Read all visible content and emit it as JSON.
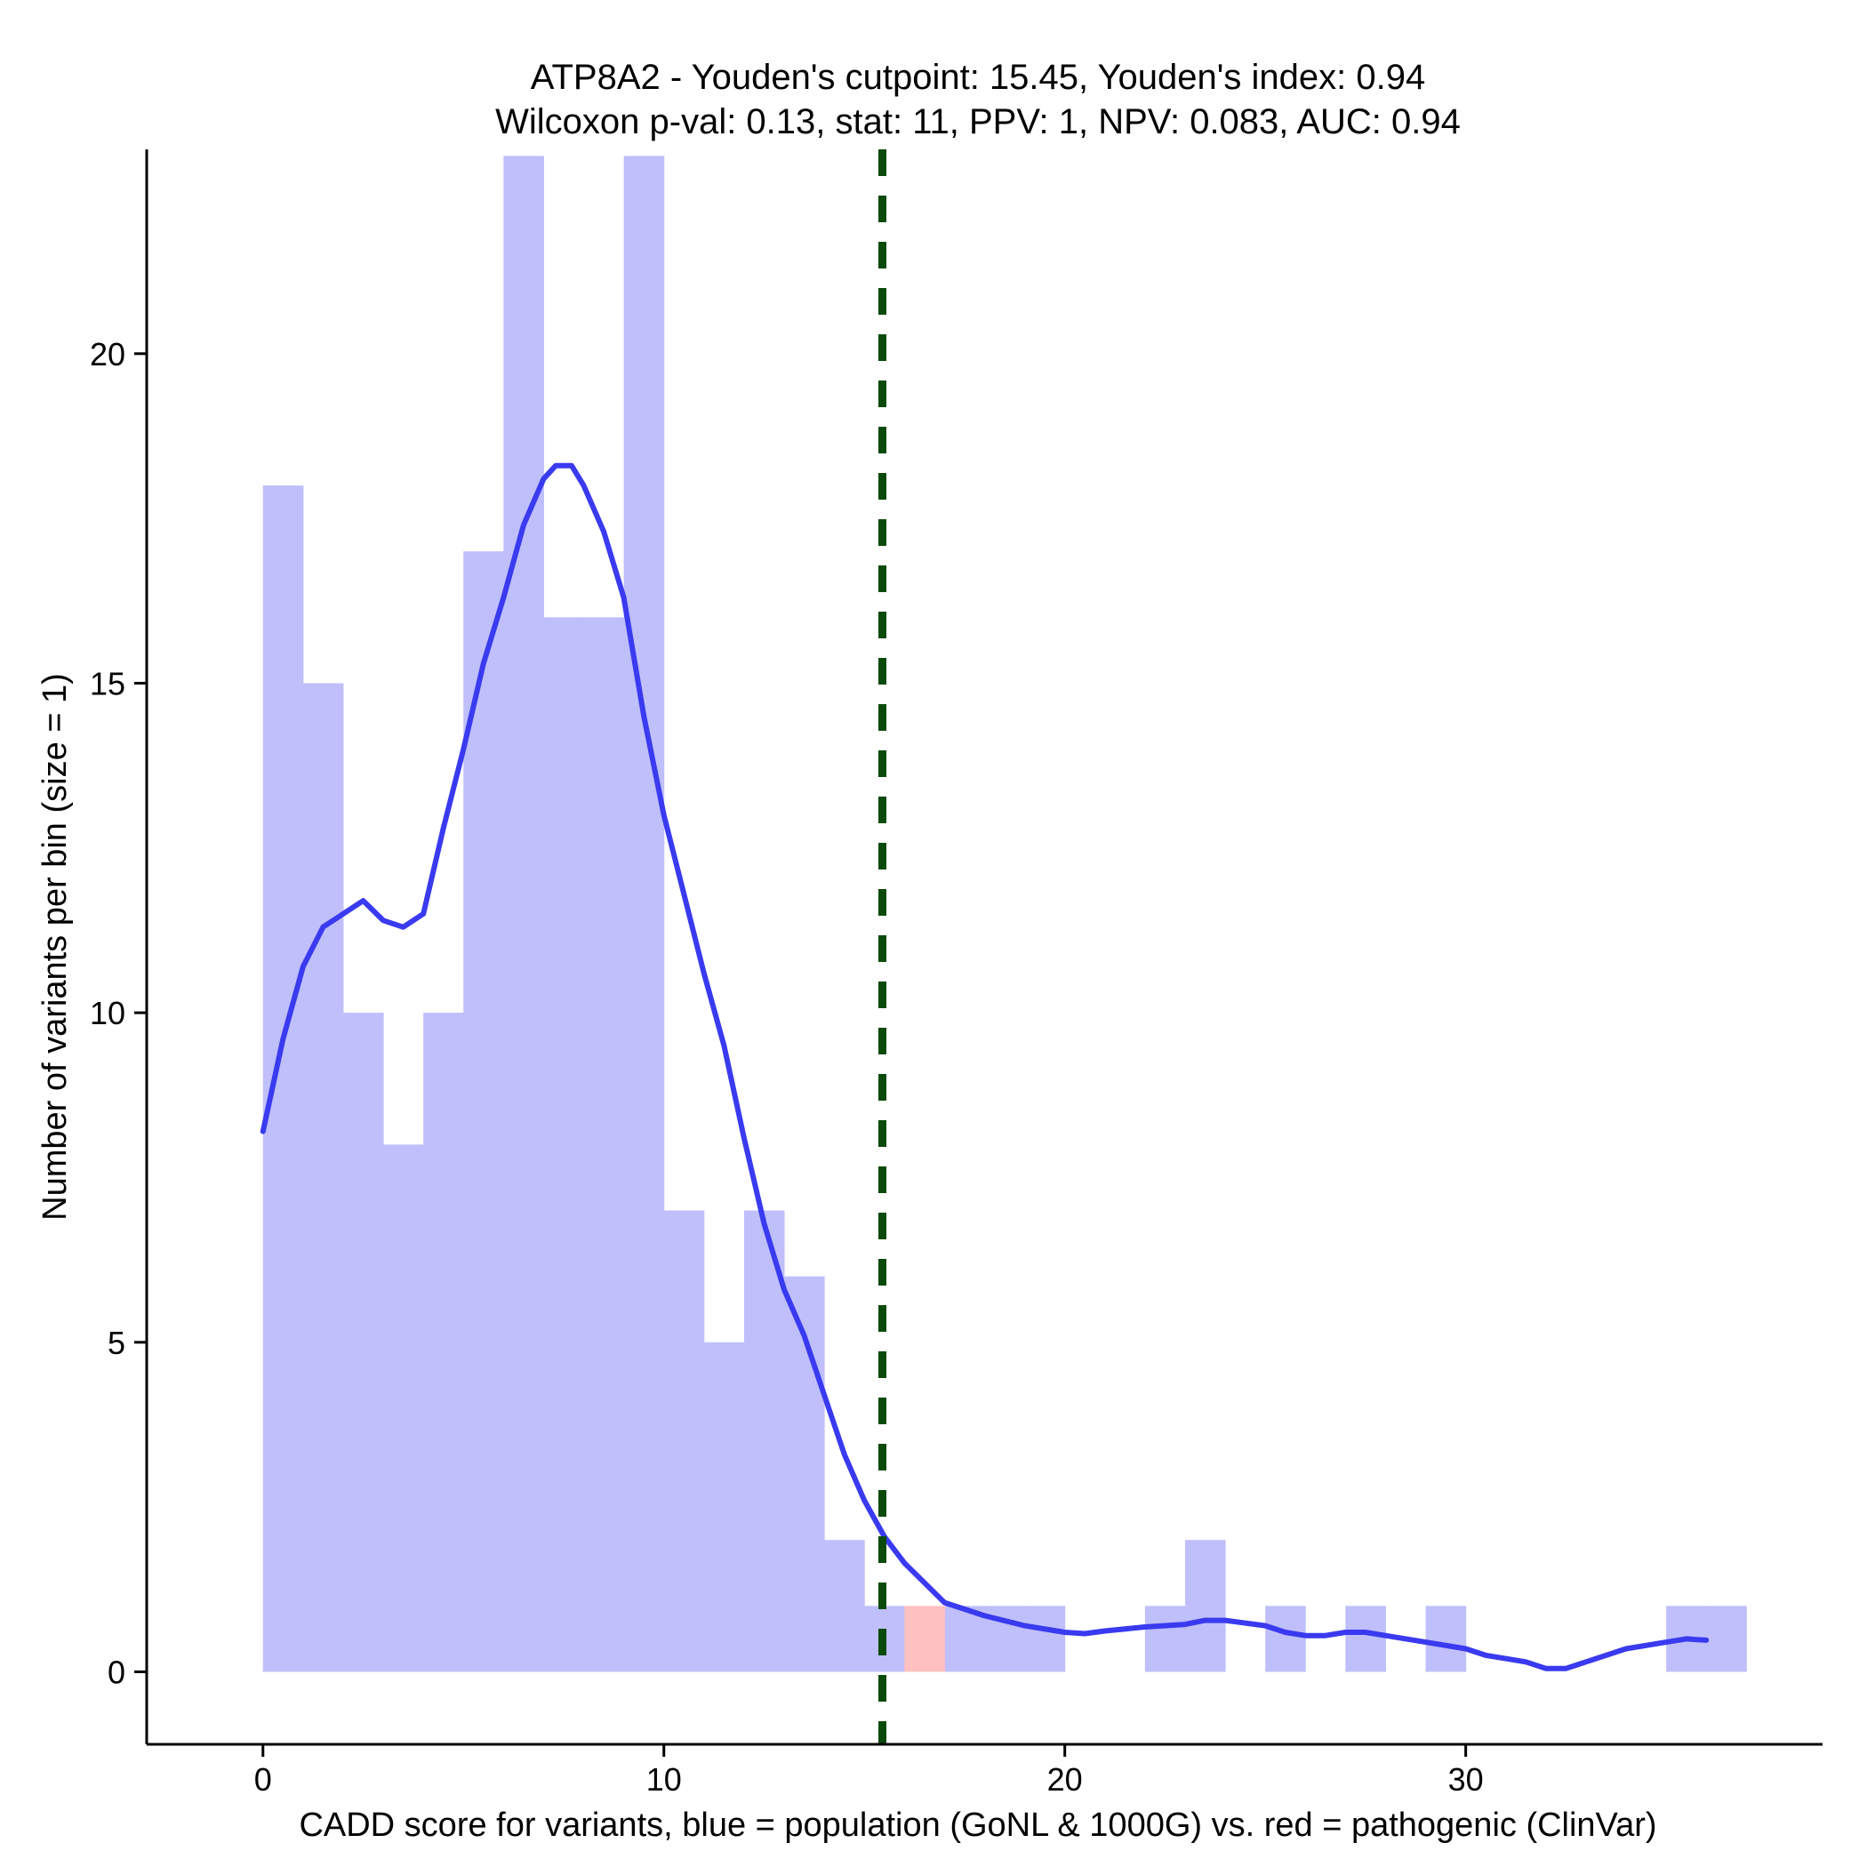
{
  "chart_data": {
    "type": "bar",
    "title": "ATP8A2 - Youden's cutpoint: 15.45, Youden's index: 0.94",
    "subtitle": "Wilcoxon p-val: 0.13, stat: 11, PPV: 1, NPV: 0.083, AUC: 0.94",
    "xlabel": "CADD score for variants, blue = population (GoNL & 1000G) vs. red = pathogenic (ClinVar)",
    "ylabel": "Number of variants per bin (size = 1)",
    "xlim": [
      -2.9,
      38.9
    ],
    "ylim": [
      -1.1,
      23.1
    ],
    "x_ticks": [
      0,
      10,
      20,
      30
    ],
    "y_ticks": [
      0,
      5,
      10,
      15,
      20
    ],
    "bin_size": 1,
    "cutpoint": 15.45,
    "colors": {
      "population": "#bfbffb",
      "pathogenic": "#ffc0c0",
      "density": "#3a3af0",
      "cutpoint": "#0a4a0a"
    },
    "series": [
      {
        "name": "population (GoNL & 1000G)",
        "bins": [
          [
            0,
            18
          ],
          [
            1,
            15
          ],
          [
            2,
            10
          ],
          [
            3,
            8
          ],
          [
            4,
            10
          ],
          [
            5,
            17
          ],
          [
            6,
            23
          ],
          [
            7,
            16
          ],
          [
            8,
            16
          ],
          [
            9,
            23
          ],
          [
            10,
            7
          ],
          [
            11,
            5
          ],
          [
            12,
            7
          ],
          [
            13,
            6
          ],
          [
            14,
            2
          ],
          [
            15,
            1
          ],
          [
            17,
            1
          ],
          [
            18,
            1
          ],
          [
            19,
            1
          ],
          [
            22,
            1
          ],
          [
            23,
            2
          ],
          [
            25,
            1
          ],
          [
            27,
            1
          ],
          [
            29,
            1
          ],
          [
            35,
            1
          ],
          [
            36,
            1
          ]
        ]
      },
      {
        "name": "pathogenic (ClinVar)",
        "bins": [
          [
            16,
            1
          ]
        ]
      },
      {
        "name": "population density (scaled)",
        "type": "line",
        "points": [
          [
            0,
            8.2
          ],
          [
            0.5,
            9.6
          ],
          [
            1,
            10.7
          ],
          [
            1.5,
            11.3
          ],
          [
            2,
            11.5
          ],
          [
            2.5,
            11.7
          ],
          [
            3,
            11.4
          ],
          [
            3.5,
            11.3
          ],
          [
            4,
            11.5
          ],
          [
            4.5,
            12.8
          ],
          [
            5,
            14.0
          ],
          [
            5.5,
            15.3
          ],
          [
            6,
            16.3
          ],
          [
            6.5,
            17.4
          ],
          [
            7,
            18.1
          ],
          [
            7.3,
            18.3
          ],
          [
            7.7,
            18.3
          ],
          [
            8,
            18.0
          ],
          [
            8.5,
            17.3
          ],
          [
            9,
            16.3
          ],
          [
            9.5,
            14.5
          ],
          [
            10,
            13.0
          ],
          [
            10.5,
            11.8
          ],
          [
            11,
            10.6
          ],
          [
            11.5,
            9.5
          ],
          [
            12,
            8.1
          ],
          [
            12.5,
            6.8
          ],
          [
            13,
            5.8
          ],
          [
            13.5,
            5.1
          ],
          [
            14,
            4.2
          ],
          [
            14.5,
            3.3
          ],
          [
            15,
            2.6
          ],
          [
            15.5,
            2.05
          ],
          [
            16,
            1.65
          ],
          [
            16.5,
            1.35
          ],
          [
            17,
            1.05
          ],
          [
            17.5,
            0.95
          ],
          [
            18,
            0.85
          ],
          [
            19,
            0.7
          ],
          [
            20,
            0.6
          ],
          [
            20.5,
            0.58
          ],
          [
            21,
            0.62
          ],
          [
            22,
            0.68
          ],
          [
            23,
            0.72
          ],
          [
            23.5,
            0.78
          ],
          [
            24,
            0.78
          ],
          [
            25,
            0.7
          ],
          [
            25.5,
            0.6
          ],
          [
            26,
            0.55
          ],
          [
            26.5,
            0.55
          ],
          [
            27,
            0.6
          ],
          [
            27.5,
            0.6
          ],
          [
            28,
            0.55
          ],
          [
            29,
            0.45
          ],
          [
            30,
            0.35
          ],
          [
            30.5,
            0.25
          ],
          [
            31,
            0.2
          ],
          [
            31.5,
            0.15
          ],
          [
            32,
            0.05
          ],
          [
            32.5,
            0.05
          ],
          [
            33,
            0.15
          ],
          [
            34,
            0.35
          ],
          [
            35,
            0.45
          ],
          [
            35.5,
            0.5
          ],
          [
            36,
            0.48
          ]
        ]
      }
    ]
  }
}
